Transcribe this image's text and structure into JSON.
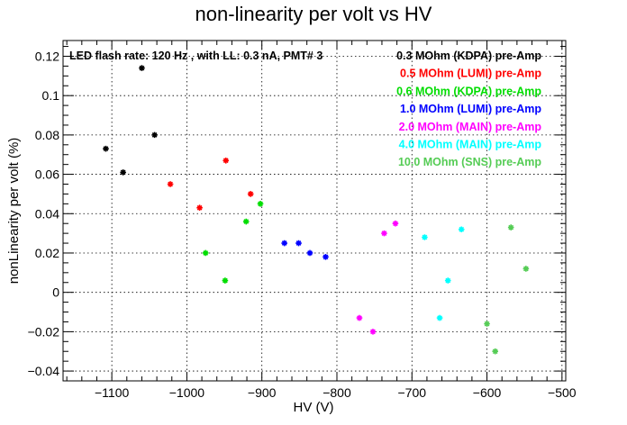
{
  "chart_data": {
    "type": "scatter",
    "title": "non-linearity per volt vs HV",
    "xlabel": "HV (V)",
    "ylabel": "nonLinearity per volt (%)",
    "annotation": "LED flash rate: 120 Hz , with LL: 0.3 nA, PMT# 3",
    "xlim": [
      -1165,
      -495
    ],
    "ylim": [
      -0.045,
      0.128
    ],
    "grid": true,
    "legend_position": "top-right",
    "x_ticks": [
      -1100,
      -1000,
      -900,
      -800,
      -700,
      -600,
      -500
    ],
    "x_tick_labels": [
      "−1100",
      "−1000",
      "−900",
      "−800",
      "−700",
      "−600",
      "−500"
    ],
    "y_ticks": [
      -0.04,
      -0.02,
      0,
      0.02,
      0.04,
      0.06,
      0.08,
      0.1,
      0.12
    ],
    "y_tick_labels": [
      "−0.04",
      "−0.02",
      "0",
      "0.02",
      "0.04",
      "0.06",
      "0.08",
      "0.1",
      "0.12"
    ],
    "series": [
      {
        "name": "0.3 MOhm (KDPA) pre-Amp",
        "color": "#000000",
        "x": [
          -1108,
          -1085,
          -1060,
          -1043
        ],
        "y": [
          0.073,
          0.061,
          0.114,
          0.08
        ]
      },
      {
        "name": "0.5 MOhm (LUMI) pre-Amp",
        "color": "#ff0000",
        "x": [
          -1022,
          -983,
          -948,
          -915
        ],
        "y": [
          0.055,
          0.043,
          0.067,
          0.05
        ]
      },
      {
        "name": "0.6 MOhm (KDPA) pre-Amp",
        "color": "#00dd00",
        "x": [
          -975,
          -949,
          -921,
          -902
        ],
        "y": [
          0.02,
          0.006,
          0.036,
          0.045
        ]
      },
      {
        "name": "1.0 MOhm (LUMI) pre-Amp",
        "color": "#0000ff",
        "x": [
          -870,
          -851,
          -836,
          -815
        ],
        "y": [
          0.025,
          0.025,
          0.02,
          0.018
        ]
      },
      {
        "name": "2.0 MOhm (MAIN) pre-Amp",
        "color": "#ff00ff",
        "x": [
          -770,
          -752,
          -737,
          -722
        ],
        "y": [
          -0.013,
          -0.02,
          0.03,
          0.035
        ]
      },
      {
        "name": "4.0 MOhm (MAIN) pre-Amp",
        "color": "#00ffff",
        "x": [
          -683,
          -663,
          -652,
          -634
        ],
        "y": [
          0.028,
          -0.013,
          0.006,
          0.032
        ]
      },
      {
        "name": "10.0 MOhm (SNS) pre-Amp",
        "color": "#55cc55",
        "x": [
          -600,
          -589,
          -568,
          -548
        ],
        "y": [
          -0.016,
          -0.03,
          0.033,
          0.012
        ]
      }
    ]
  }
}
